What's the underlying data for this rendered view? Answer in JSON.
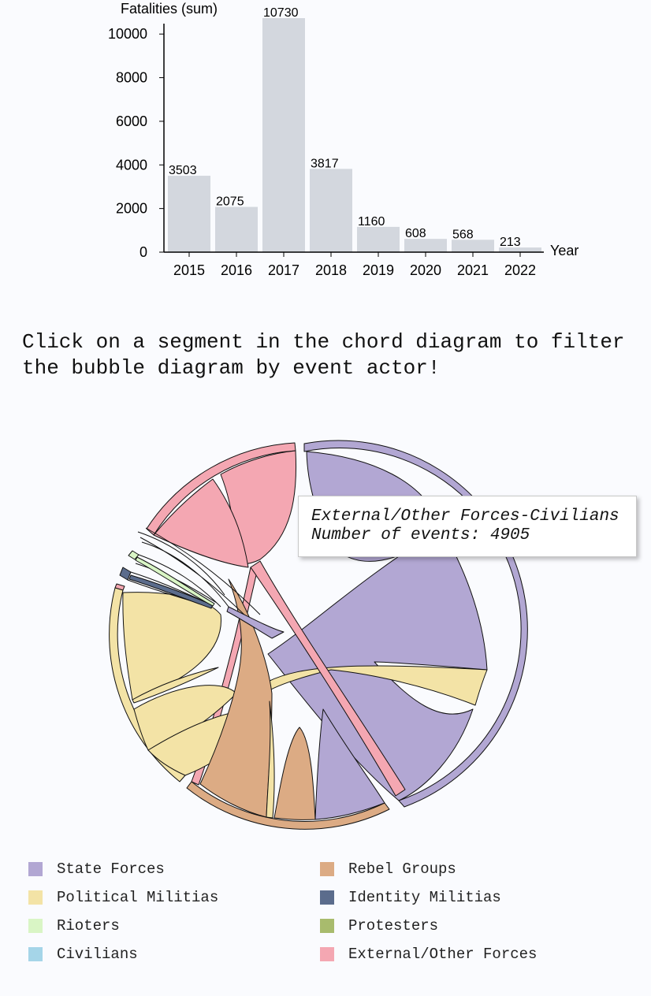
{
  "chart_data": {
    "type": "bar",
    "ylabel": "Fatalities (sum)",
    "xlabel": "Year",
    "categories": [
      "2015",
      "2016",
      "2017",
      "2018",
      "2019",
      "2020",
      "2021",
      "2022"
    ],
    "values": [
      3503,
      2075,
      10730,
      3817,
      1160,
      608,
      568,
      213
    ],
    "yticks": [
      "0",
      "2000",
      "4000",
      "6000",
      "8000",
      "10000"
    ],
    "ylim": [
      0,
      11000
    ],
    "bar_color": "#d3d7de"
  },
  "instruction": "Click on a segment in the chord diagram to filter the bubble diagram by event actor!",
  "tooltip": {
    "title": "External/Other Forces-Civilians",
    "events": "Number of events: 4905"
  },
  "legend": [
    {
      "label": "State Forces",
      "color": "#b2a7d3"
    },
    {
      "label": "Rebel Groups",
      "color": "#dcab84"
    },
    {
      "label": "Political Militias",
      "color": "#f3e3a6"
    },
    {
      "label": "Identity Militias",
      "color": "#5b6c8c"
    },
    {
      "label": "Rioters",
      "color": "#d9f5c5"
    },
    {
      "label": "Protesters",
      "color": "#a8bb6d"
    },
    {
      "label": "Civilians",
      "color": "#a5d5e8"
    },
    {
      "label": "External/Other Forces",
      "color": "#f4a7b2"
    }
  ]
}
